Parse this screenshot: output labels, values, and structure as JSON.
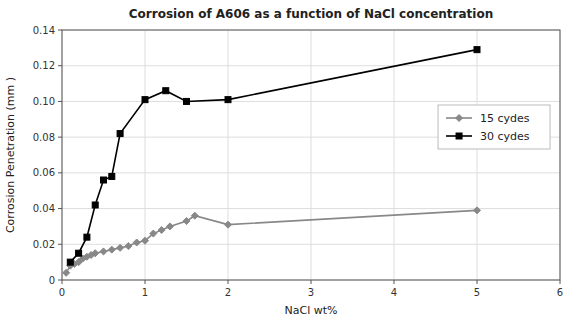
{
  "chart_data": {
    "type": "line",
    "title": "Corrosion of A606 as a function of NaCl concentration",
    "x_label": "NaCl wt%",
    "y_label": "Corrosion Penetration (mm )",
    "xlim": [
      0,
      6
    ],
    "ylim": [
      0,
      0.14
    ],
    "xticks": [
      0,
      1,
      2,
      3,
      4,
      5,
      6
    ],
    "yticks": [
      0,
      0.02,
      0.04,
      0.06,
      0.08,
      {
        "value": 0.1,
        "label": "0.10"
      },
      0.12,
      0.14
    ],
    "grid": true,
    "legend": "upper right",
    "series": [
      {
        "name": "15 cydes",
        "color": "#888888",
        "marker": "diamond",
        "line_style": "solid",
        "x": [
          0.05,
          0.1,
          0.15,
          0.2,
          0.25,
          0.3,
          0.35,
          0.4,
          0.5,
          0.6,
          0.7,
          0.8,
          0.9,
          1.0,
          1.1,
          1.2,
          1.3,
          1.5,
          1.6,
          2.0,
          5.0
        ],
        "values": [
          0.004,
          0.008,
          0.009,
          0.01,
          0.012,
          0.013,
          0.014,
          0.015,
          0.016,
          0.017,
          0.018,
          0.019,
          0.021,
          0.022,
          0.026,
          0.028,
          0.03,
          0.033,
          0.036,
          0.031,
          0.039
        ]
      },
      {
        "name": "30 cydes",
        "color": "#000000",
        "marker": "square",
        "line_style": "solid",
        "x": [
          0.1,
          0.2,
          0.3,
          0.4,
          0.5,
          0.6,
          0.7,
          1.0,
          1.25,
          1.5,
          2.0,
          5.0
        ],
        "values": [
          0.01,
          0.015,
          0.024,
          0.042,
          0.056,
          0.058,
          0.082,
          0.101,
          0.106,
          0.1,
          0.101,
          0.129
        ]
      }
    ]
  }
}
